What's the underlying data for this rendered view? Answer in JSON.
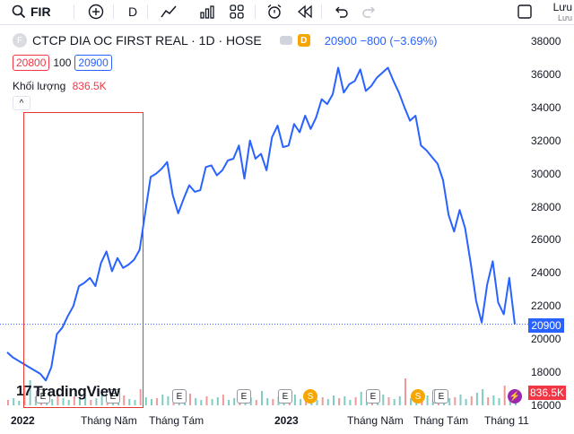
{
  "toolbar": {
    "symbol": "FIR",
    "interval": "D",
    "save_label": "Lưu",
    "save_sub": "Lưu"
  },
  "legend": {
    "title": "CTCP DIA OC FIRST REAL · 1D · HOSE",
    "logo_letter": "F",
    "d_badge": "D",
    "quote": "20900 −800 (−3.69%)",
    "sell": "20800",
    "spread": "100",
    "buy": "20900",
    "volume_label": "Khối lượng",
    "volume_value": "836.5K",
    "collapse": "^"
  },
  "price_axis": [
    "38000",
    "36000",
    "34000",
    "32000",
    "30000",
    "28000",
    "26000",
    "24000",
    "22000",
    "20000",
    "18000",
    "16000"
  ],
  "last_price_tag": "20900",
  "volume_tag": "836.5K",
  "x_labels": [
    {
      "text": "2022",
      "bold": true
    },
    {
      "text": "Tháng Năm",
      "bold": false
    },
    {
      "text": "Tháng Tám",
      "bold": false
    },
    {
      "text": "2023",
      "bold": true
    },
    {
      "text": "Tháng Năm",
      "bold": false
    },
    {
      "text": "Tháng Tám",
      "bold": false
    },
    {
      "text": "Tháng 11",
      "bold": false
    }
  ],
  "brand": "TradingView",
  "brand_mark": "17",
  "event_markers": [
    "E",
    "E",
    "E",
    "E",
    "E",
    "S",
    "E",
    "E",
    "S",
    "E",
    "⚡"
  ],
  "colors": {
    "line": "#2962ff",
    "up": "#26a69a",
    "down": "#ef5350",
    "highlight": "#e53935"
  },
  "chart_data": {
    "type": "line",
    "ylim": [
      16000,
      38000
    ],
    "last_value": 20900,
    "series": [
      {
        "name": "",
        "values": [
          19200,
          18900,
          18700,
          18500,
          18300,
          18100,
          17900,
          17500,
          18300,
          20300,
          20700,
          21400,
          22000,
          23200,
          23400,
          23700,
          23200,
          24600,
          25300,
          24100,
          24900,
          24300,
          24500,
          24800,
          25400,
          27600,
          29800,
          30000,
          30300,
          30700,
          28700,
          27600,
          28500,
          29300,
          28900,
          29000,
          30400,
          30500,
          29900,
          30200,
          30800,
          30900,
          31700,
          29700,
          32000,
          30900,
          31200,
          30200,
          32200,
          32900,
          31600,
          31700,
          33000,
          32500,
          33500,
          32700,
          33400,
          34500,
          34200,
          34800,
          36400,
          34900,
          35400,
          35600,
          36300,
          35000,
          35300,
          35800,
          36100,
          36400,
          35600,
          34900,
          34000,
          33200,
          33500,
          31700,
          31400,
          31000,
          30600,
          29600,
          27500,
          26500,
          27800,
          26700,
          24600,
          22300,
          21000,
          23300,
          24700,
          22200,
          21500,
          23700,
          20900
        ]
      }
    ]
  }
}
